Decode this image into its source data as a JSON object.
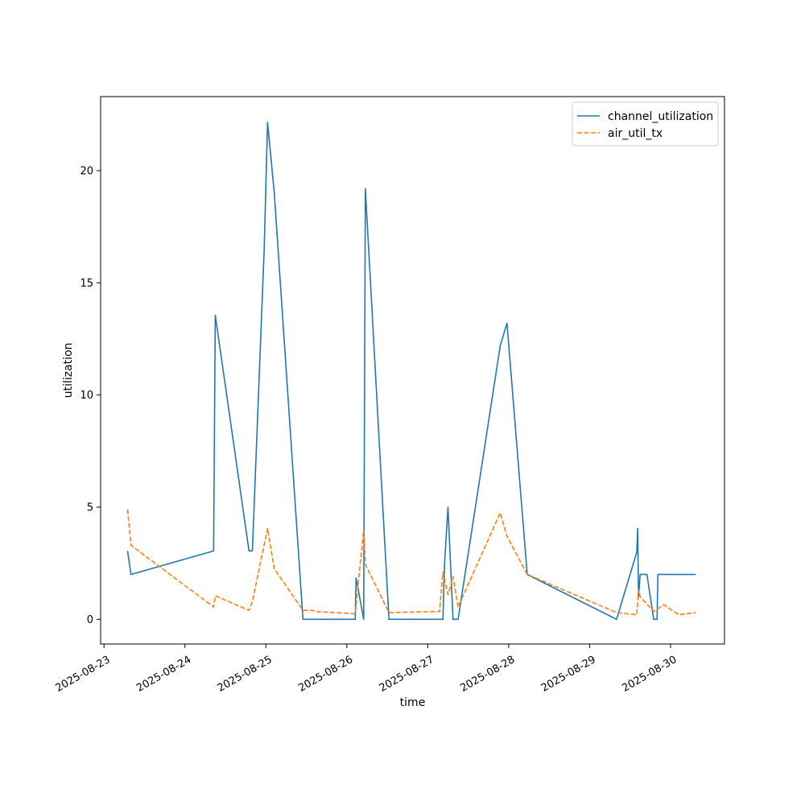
{
  "chart_data": {
    "type": "line",
    "title": "",
    "xlabel": "time",
    "ylabel": "utilization",
    "x_axis_type": "date",
    "xlim": [
      "2025-08-22T23:00",
      "2025-08-30T16:00"
    ],
    "ylim": [
      -1.1,
      23.3
    ],
    "x_ticks": [
      "2025-08-23",
      "2025-08-24",
      "2025-08-25",
      "2025-08-26",
      "2025-08-27",
      "2025-08-28",
      "2025-08-29",
      "2025-08-30"
    ],
    "y_ticks": [
      0,
      5,
      10,
      15,
      20
    ],
    "grid": false,
    "legend": {
      "position": "top-right"
    },
    "series": [
      {
        "name": "channel_utilization",
        "color": "#1f77b4",
        "style": "solid",
        "points": [
          [
            "2025-08-23T07:00",
            3.05
          ],
          [
            "2025-08-23T08:00",
            2.0
          ],
          [
            "2025-08-24T08:30",
            3.05
          ],
          [
            "2025-08-24T09:00",
            13.55
          ],
          [
            "2025-08-24T19:00",
            3.05
          ],
          [
            "2025-08-24T20:00",
            3.05
          ],
          [
            "2025-08-24T23:30",
            16.5
          ],
          [
            "2025-08-25T00:30",
            22.15
          ],
          [
            "2025-08-25T02:30",
            19.0
          ],
          [
            "2025-08-25T11:00",
            0.0
          ],
          [
            "2025-08-26T02:30",
            0.0
          ],
          [
            "2025-08-26T02:45",
            1.85
          ],
          [
            "2025-08-26T05:00",
            0.0
          ],
          [
            "2025-08-26T05:30",
            19.2
          ],
          [
            "2025-08-26T12:30",
            0.0
          ],
          [
            "2025-08-27T04:30",
            0.0
          ],
          [
            "2025-08-27T05:00",
            2.5
          ],
          [
            "2025-08-27T06:00",
            5.0
          ],
          [
            "2025-08-27T07:30",
            0.0
          ],
          [
            "2025-08-27T09:00",
            0.0
          ],
          [
            "2025-08-27T21:30",
            12.2
          ],
          [
            "2025-08-27T23:30",
            13.2
          ],
          [
            "2025-08-28T05:30",
            2.0
          ],
          [
            "2025-08-29T08:00",
            0.0
          ],
          [
            "2025-08-29T14:00",
            3.0
          ],
          [
            "2025-08-29T14:15",
            4.05
          ],
          [
            "2025-08-29T14:30",
            1.0
          ],
          [
            "2025-08-29T15:00",
            2.0
          ],
          [
            "2025-08-29T17:00",
            2.0
          ],
          [
            "2025-08-29T19:00",
            0.0
          ],
          [
            "2025-08-29T20:00",
            0.0
          ],
          [
            "2025-08-29T20:15",
            2.0
          ],
          [
            "2025-08-30T07:30",
            2.0
          ]
        ]
      },
      {
        "name": "air_util_tx",
        "color": "#ff7f0e",
        "style": "dashed",
        "points": [
          [
            "2025-08-23T07:00",
            4.9
          ],
          [
            "2025-08-23T08:00",
            3.3
          ],
          [
            "2025-08-24T08:30",
            0.55
          ],
          [
            "2025-08-24T09:00",
            1.05
          ],
          [
            "2025-08-24T19:00",
            0.4
          ],
          [
            "2025-08-24T20:00",
            0.8
          ],
          [
            "2025-08-25T00:30",
            4.05
          ],
          [
            "2025-08-25T02:30",
            2.25
          ],
          [
            "2025-08-25T11:00",
            0.4
          ],
          [
            "2025-08-25T14:00",
            0.4
          ],
          [
            "2025-08-25T14:30",
            0.35
          ],
          [
            "2025-08-26T02:30",
            0.25
          ],
          [
            "2025-08-26T05:00",
            4.0
          ],
          [
            "2025-08-26T05:30",
            2.45
          ],
          [
            "2025-08-26T12:30",
            0.3
          ],
          [
            "2025-08-27T03:30",
            0.35
          ],
          [
            "2025-08-27T04:30",
            2.1
          ],
          [
            "2025-08-27T06:00",
            1.1
          ],
          [
            "2025-08-27T07:30",
            1.9
          ],
          [
            "2025-08-27T09:00",
            0.55
          ],
          [
            "2025-08-27T21:30",
            4.75
          ],
          [
            "2025-08-27T23:30",
            3.7
          ],
          [
            "2025-08-28T05:30",
            2.0
          ],
          [
            "2025-08-29T08:00",
            0.3
          ],
          [
            "2025-08-29T14:00",
            0.2
          ],
          [
            "2025-08-29T14:30",
            1.3
          ],
          [
            "2025-08-29T15:00",
            1.0
          ],
          [
            "2025-08-29T19:00",
            0.35
          ],
          [
            "2025-08-29T22:00",
            0.65
          ],
          [
            "2025-08-30T02:30",
            0.2
          ],
          [
            "2025-08-30T07:30",
            0.3
          ]
        ]
      }
    ]
  }
}
